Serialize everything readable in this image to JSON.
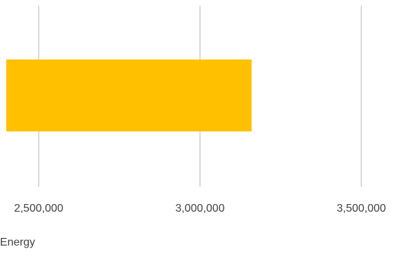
{
  "chart_data": {
    "type": "bar",
    "orientation": "horizontal",
    "title": "",
    "xlabel": "",
    "ylabel": "",
    "categories": [
      ""
    ],
    "series": [
      {
        "name": "Energy",
        "values": [
          3160000
        ],
        "color": "#FFC000"
      }
    ],
    "xlim": [
      2380000,
      3620000
    ],
    "x_ticks": [
      2500000,
      3000000,
      3500000
    ],
    "x_tick_labels": [
      "2,500,000",
      "3,000,000",
      "3,500,000"
    ],
    "grid": true,
    "legend_text": "Energy"
  }
}
